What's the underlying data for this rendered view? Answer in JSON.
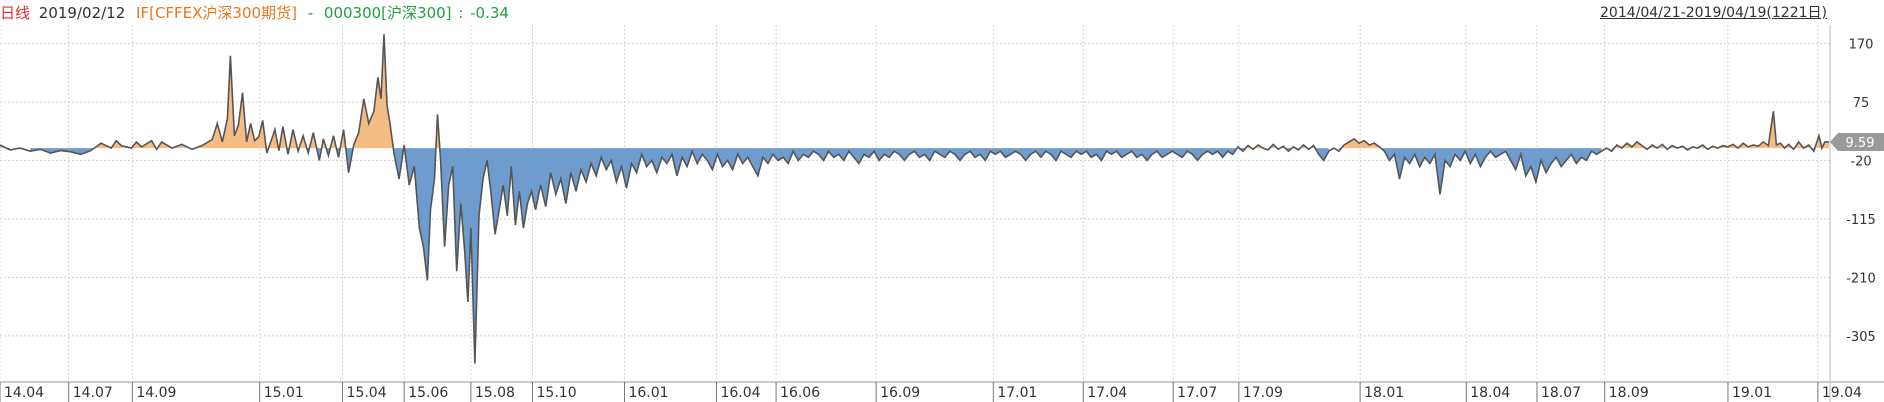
{
  "header": {
    "period_label": "日线",
    "date": "2019/02/12",
    "series_a": "IF[CFFEX沪深300期货]",
    "separator": "-",
    "series_b": "000300[沪深300]",
    "colon": ":",
    "value": "-0.34",
    "date_range": "2014/04/21-2019/04/19(1221日)"
  },
  "colors": {
    "positive_fill": "#f5bd86",
    "negative_fill": "#6f9ccf",
    "line": "#555555",
    "grid": "#d4d4d4",
    "period_label": "#e03030",
    "series_a": "#e87820",
    "series_b": "#20a040",
    "value": "#20a040"
  },
  "chart_data": {
    "type": "area",
    "title": "",
    "ylim": [
      -380,
      200
    ],
    "y_ticks": [
      170,
      75,
      -20,
      -115,
      -210,
      -305
    ],
    "current_value_label": "9.59",
    "grid": true,
    "x_ticks": [
      "14.04",
      "14.07",
      "14.09",
      "15.01",
      "15.04",
      "15.06",
      "15.08",
      "15.10",
      "16.01",
      "16.04",
      "16.06",
      "16.09",
      "17.01",
      "17.04",
      "17.07",
      "17.09",
      "18.01",
      "18.04",
      "18.07",
      "18.09",
      "19.01",
      "19.04"
    ],
    "x_tick_index": [
      0,
      68,
      131,
      257,
      339,
      400,
      466,
      527,
      618,
      709,
      768,
      867,
      983,
      1072,
      1161,
      1226,
      1346,
      1451,
      1521,
      1588,
      1710,
      1799
    ],
    "total_days": 1811,
    "points": [
      [
        0,
        5
      ],
      [
        10,
        -3
      ],
      [
        20,
        0
      ],
      [
        30,
        -5
      ],
      [
        40,
        -2
      ],
      [
        50,
        -8
      ],
      [
        60,
        -4
      ],
      [
        70,
        -6
      ],
      [
        80,
        -10
      ],
      [
        90,
        -4
      ],
      [
        100,
        8
      ],
      [
        110,
        0
      ],
      [
        115,
        12
      ],
      [
        120,
        4
      ],
      [
        130,
        0
      ],
      [
        135,
        10
      ],
      [
        140,
        2
      ],
      [
        150,
        12
      ],
      [
        155,
        -2
      ],
      [
        160,
        10
      ],
      [
        170,
        0
      ],
      [
        180,
        6
      ],
      [
        190,
        -2
      ],
      [
        200,
        4
      ],
      [
        210,
        14
      ],
      [
        215,
        40
      ],
      [
        220,
        10
      ],
      [
        225,
        48
      ],
      [
        228,
        150
      ],
      [
        232,
        20
      ],
      [
        236,
        38
      ],
      [
        240,
        90
      ],
      [
        244,
        10
      ],
      [
        248,
        40
      ],
      [
        252,
        12
      ],
      [
        256,
        18
      ],
      [
        260,
        45
      ],
      [
        264,
        -8
      ],
      [
        268,
        10
      ],
      [
        272,
        30
      ],
      [
        276,
        -4
      ],
      [
        280,
        35
      ],
      [
        285,
        -10
      ],
      [
        290,
        30
      ],
      [
        295,
        -5
      ],
      [
        300,
        20
      ],
      [
        305,
        -8
      ],
      [
        310,
        25
      ],
      [
        316,
        -20
      ],
      [
        320,
        15
      ],
      [
        325,
        -12
      ],
      [
        330,
        20
      ],
      [
        335,
        -15
      ],
      [
        340,
        30
      ],
      [
        345,
        -40
      ],
      [
        350,
        5
      ],
      [
        355,
        25
      ],
      [
        360,
        80
      ],
      [
        365,
        40
      ],
      [
        370,
        60
      ],
      [
        374,
        115
      ],
      [
        377,
        80
      ],
      [
        380,
        185
      ],
      [
        383,
        70
      ],
      [
        386,
        40
      ],
      [
        390,
        -10
      ],
      [
        395,
        -50
      ],
      [
        400,
        5
      ],
      [
        405,
        -60
      ],
      [
        410,
        -30
      ],
      [
        415,
        -130
      ],
      [
        419,
        -160
      ],
      [
        423,
        -215
      ],
      [
        426,
        -100
      ],
      [
        430,
        -50
      ],
      [
        433,
        55
      ],
      [
        436,
        -20
      ],
      [
        440,
        -160
      ],
      [
        444,
        -60
      ],
      [
        448,
        -30
      ],
      [
        452,
        -200
      ],
      [
        456,
        -90
      ],
      [
        460,
        -170
      ],
      [
        463,
        -250
      ],
      [
        466,
        -130
      ],
      [
        470,
        -350
      ],
      [
        474,
        -110
      ],
      [
        478,
        -50
      ],
      [
        482,
        -20
      ],
      [
        486,
        -75
      ],
      [
        490,
        -140
      ],
      [
        494,
        -100
      ],
      [
        498,
        -60
      ],
      [
        502,
        -110
      ],
      [
        506,
        -30
      ],
      [
        510,
        -125
      ],
      [
        514,
        -70
      ],
      [
        518,
        -130
      ],
      [
        522,
        -90
      ],
      [
        526,
        -70
      ],
      [
        530,
        -100
      ],
      [
        535,
        -60
      ],
      [
        540,
        -95
      ],
      [
        545,
        -40
      ],
      [
        550,
        -75
      ],
      [
        555,
        -50
      ],
      [
        560,
        -90
      ],
      [
        565,
        -40
      ],
      [
        570,
        -70
      ],
      [
        575,
        -35
      ],
      [
        580,
        -55
      ],
      [
        585,
        -25
      ],
      [
        590,
        -45
      ],
      [
        595,
        -15
      ],
      [
        600,
        -35
      ],
      [
        605,
        -20
      ],
      [
        610,
        -55
      ],
      [
        615,
        -30
      ],
      [
        620,
        -65
      ],
      [
        625,
        -25
      ],
      [
        630,
        -40
      ],
      [
        635,
        -10
      ],
      [
        640,
        -30
      ],
      [
        645,
        -20
      ],
      [
        650,
        -40
      ],
      [
        655,
        -15
      ],
      [
        660,
        -25
      ],
      [
        665,
        -10
      ],
      [
        670,
        -45
      ],
      [
        675,
        -15
      ],
      [
        680,
        -30
      ],
      [
        685,
        -5
      ],
      [
        690,
        -25
      ],
      [
        695,
        -10
      ],
      [
        700,
        -20
      ],
      [
        705,
        -35
      ],
      [
        710,
        -10
      ],
      [
        715,
        -30
      ],
      [
        720,
        -20
      ],
      [
        725,
        -35
      ],
      [
        730,
        -10
      ],
      [
        735,
        -25
      ],
      [
        740,
        -15
      ],
      [
        745,
        -30
      ],
      [
        750,
        -45
      ],
      [
        755,
        -15
      ],
      [
        760,
        -25
      ],
      [
        765,
        -10
      ],
      [
        770,
        -20
      ],
      [
        775,
        -15
      ],
      [
        780,
        -25
      ],
      [
        785,
        -5
      ],
      [
        790,
        -20
      ],
      [
        795,
        -10
      ],
      [
        800,
        -15
      ],
      [
        805,
        -5
      ],
      [
        810,
        -10
      ],
      [
        815,
        -20
      ],
      [
        820,
        -5
      ],
      [
        825,
        -15
      ],
      [
        830,
        -10
      ],
      [
        835,
        -20
      ],
      [
        840,
        -5
      ],
      [
        845,
        -15
      ],
      [
        850,
        -25
      ],
      [
        855,
        -10
      ],
      [
        860,
        -15
      ],
      [
        865,
        -5
      ],
      [
        870,
        -20
      ],
      [
        875,
        -10
      ],
      [
        880,
        -15
      ],
      [
        885,
        -5
      ],
      [
        890,
        -10
      ],
      [
        895,
        -20
      ],
      [
        900,
        -10
      ],
      [
        905,
        -5
      ],
      [
        910,
        -15
      ],
      [
        915,
        -10
      ],
      [
        920,
        -20
      ],
      [
        925,
        -5
      ],
      [
        930,
        -10
      ],
      [
        935,
        -15
      ],
      [
        940,
        -5
      ],
      [
        945,
        -10
      ],
      [
        950,
        -20
      ],
      [
        955,
        -10
      ],
      [
        960,
        -5
      ],
      [
        965,
        -15
      ],
      [
        970,
        -10
      ],
      [
        975,
        -20
      ],
      [
        980,
        -5
      ],
      [
        985,
        -10
      ],
      [
        990,
        -5
      ],
      [
        995,
        -15
      ],
      [
        1000,
        -10
      ],
      [
        1005,
        -5
      ],
      [
        1010,
        -10
      ],
      [
        1015,
        -20
      ],
      [
        1020,
        -10
      ],
      [
        1025,
        -5
      ],
      [
        1030,
        -15
      ],
      [
        1035,
        -5
      ],
      [
        1040,
        -10
      ],
      [
        1045,
        -20
      ],
      [
        1050,
        -5
      ],
      [
        1055,
        -10
      ],
      [
        1060,
        -15
      ],
      [
        1065,
        -5
      ],
      [
        1070,
        -10
      ],
      [
        1075,
        -5
      ],
      [
        1080,
        -15
      ],
      [
        1085,
        -10
      ],
      [
        1090,
        -20
      ],
      [
        1095,
        -5
      ],
      [
        1100,
        -10
      ],
      [
        1105,
        -5
      ],
      [
        1110,
        -15
      ],
      [
        1115,
        -10
      ],
      [
        1120,
        -5
      ],
      [
        1125,
        -15
      ],
      [
        1130,
        -10
      ],
      [
        1135,
        -20
      ],
      [
        1140,
        -10
      ],
      [
        1145,
        -5
      ],
      [
        1150,
        -15
      ],
      [
        1155,
        -10
      ],
      [
        1160,
        -5
      ],
      [
        1165,
        -10
      ],
      [
        1170,
        -15
      ],
      [
        1175,
        -5
      ],
      [
        1180,
        -10
      ],
      [
        1185,
        -20
      ],
      [
        1190,
        -10
      ],
      [
        1195,
        -5
      ],
      [
        1200,
        -10
      ],
      [
        1205,
        -5
      ],
      [
        1210,
        -15
      ],
      [
        1215,
        -5
      ],
      [
        1220,
        -10
      ],
      [
        1225,
        2
      ],
      [
        1230,
        -5
      ],
      [
        1235,
        4
      ],
      [
        1240,
        -2
      ],
      [
        1245,
        5
      ],
      [
        1250,
        0
      ],
      [
        1255,
        -3
      ],
      [
        1260,
        6
      ],
      [
        1265,
        -2
      ],
      [
        1270,
        3
      ],
      [
        1275,
        -5
      ],
      [
        1280,
        2
      ],
      [
        1285,
        -3
      ],
      [
        1290,
        5
      ],
      [
        1295,
        -2
      ],
      [
        1300,
        4
      ],
      [
        1305,
        -10
      ],
      [
        1310,
        -20
      ],
      [
        1315,
        -5
      ],
      [
        1320,
        0
      ],
      [
        1325,
        -5
      ],
      [
        1330,
        5
      ],
      [
        1335,
        10
      ],
      [
        1340,
        15
      ],
      [
        1345,
        8
      ],
      [
        1350,
        12
      ],
      [
        1355,
        5
      ],
      [
        1360,
        8
      ],
      [
        1365,
        2
      ],
      [
        1370,
        -5
      ],
      [
        1375,
        -20
      ],
      [
        1380,
        -10
      ],
      [
        1385,
        -50
      ],
      [
        1390,
        -15
      ],
      [
        1395,
        -25
      ],
      [
        1400,
        -10
      ],
      [
        1405,
        -30
      ],
      [
        1410,
        -15
      ],
      [
        1415,
        -25
      ],
      [
        1420,
        -10
      ],
      [
        1425,
        -75
      ],
      [
        1430,
        -20
      ],
      [
        1435,
        -30
      ],
      [
        1440,
        -10
      ],
      [
        1445,
        -20
      ],
      [
        1450,
        -5
      ],
      [
        1455,
        -25
      ],
      [
        1460,
        -10
      ],
      [
        1465,
        -30
      ],
      [
        1470,
        -15
      ],
      [
        1475,
        -5
      ],
      [
        1480,
        -15
      ],
      [
        1485,
        -10
      ],
      [
        1490,
        -5
      ],
      [
        1495,
        -20
      ],
      [
        1500,
        -35
      ],
      [
        1505,
        -10
      ],
      [
        1510,
        -45
      ],
      [
        1515,
        -30
      ],
      [
        1520,
        -55
      ],
      [
        1525,
        -20
      ],
      [
        1530,
        -40
      ],
      [
        1535,
        -25
      ],
      [
        1540,
        -15
      ],
      [
        1545,
        -30
      ],
      [
        1550,
        -20
      ],
      [
        1555,
        -10
      ],
      [
        1560,
        -25
      ],
      [
        1565,
        -15
      ],
      [
        1570,
        -20
      ],
      [
        1575,
        -5
      ],
      [
        1580,
        -10
      ],
      [
        1585,
        -5
      ],
      [
        1590,
        0
      ],
      [
        1595,
        -5
      ],
      [
        1600,
        5
      ],
      [
        1605,
        0
      ],
      [
        1610,
        8
      ],
      [
        1615,
        2
      ],
      [
        1620,
        10
      ],
      [
        1625,
        4
      ],
      [
        1630,
        -2
      ],
      [
        1635,
        5
      ],
      [
        1640,
        0
      ],
      [
        1645,
        6
      ],
      [
        1650,
        -2
      ],
      [
        1655,
        4
      ],
      [
        1660,
        0
      ],
      [
        1665,
        3
      ],
      [
        1670,
        -3
      ],
      [
        1675,
        2
      ],
      [
        1680,
        0
      ],
      [
        1685,
        5
      ],
      [
        1690,
        -2
      ],
      [
        1695,
        3
      ],
      [
        1700,
        0
      ],
      [
        1705,
        4
      ],
      [
        1710,
        2
      ],
      [
        1715,
        6
      ],
      [
        1720,
        0
      ],
      [
        1725,
        8
      ],
      [
        1730,
        2
      ],
      [
        1735,
        5
      ],
      [
        1740,
        3
      ],
      [
        1745,
        10
      ],
      [
        1750,
        4
      ],
      [
        1755,
        60
      ],
      [
        1758,
        5
      ],
      [
        1762,
        8
      ],
      [
        1766,
        0
      ],
      [
        1770,
        6
      ],
      [
        1775,
        -2
      ],
      [
        1780,
        10
      ],
      [
        1785,
        0
      ],
      [
        1790,
        5
      ],
      [
        1795,
        -5
      ],
      [
        1800,
        20
      ],
      [
        1803,
        0
      ],
      [
        1806,
        10
      ],
      [
        1810,
        10
      ]
    ]
  }
}
